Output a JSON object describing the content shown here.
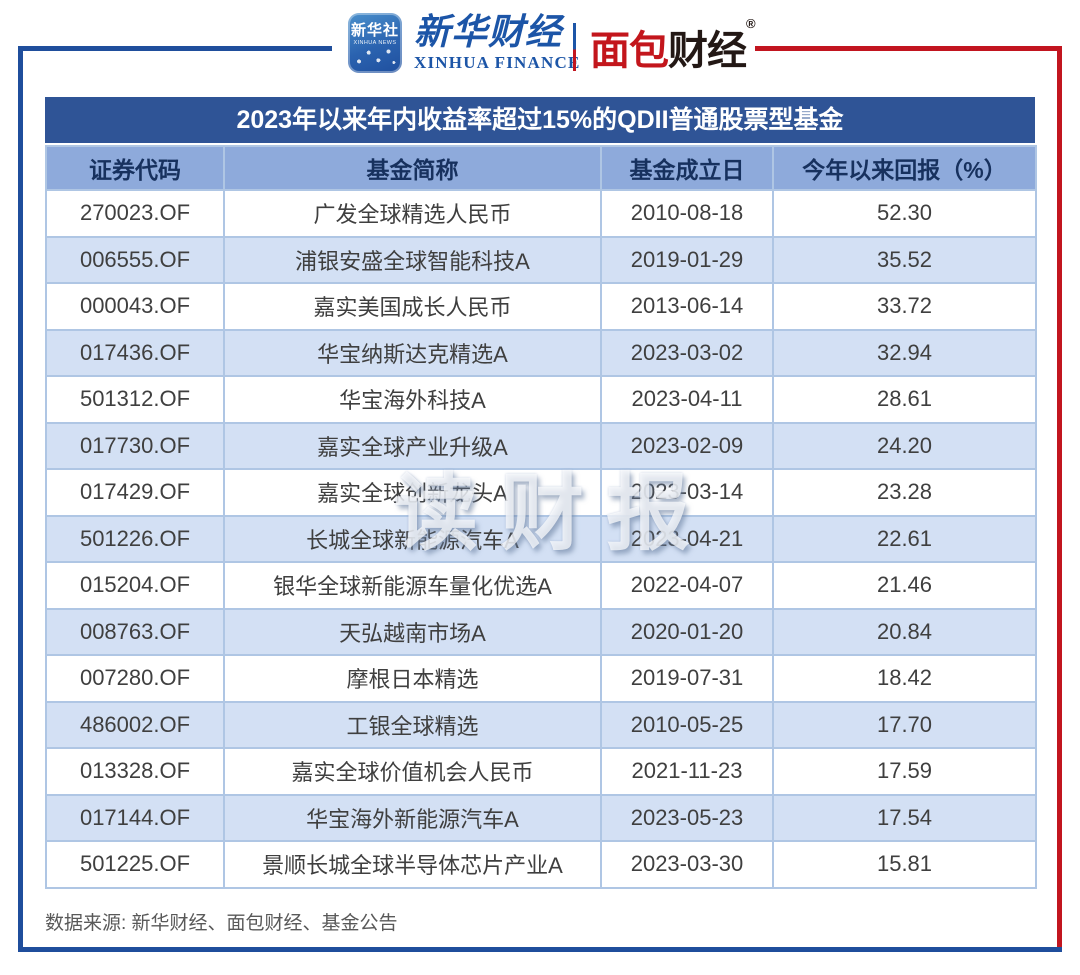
{
  "header": {
    "xinhua_news": {
      "cn": "新华社",
      "en": "XINHUA NEWS"
    },
    "xinhua_finance": {
      "cn": "新华财经",
      "en": "XINHUA FINANCE"
    },
    "mianbao": {
      "cn_red": "面包",
      "cn_black": "财经",
      "reg": "®"
    }
  },
  "chart_data": {
    "type": "table",
    "title": "2023年以来年内收益率超过15%的QDII普通股票型基金",
    "columns": [
      "证券代码",
      "基金简称",
      "基金成立日",
      "今年以来回报（%）"
    ],
    "rows": [
      [
        "270023.OF",
        "广发全球精选人民币",
        "2010-08-18",
        "52.30"
      ],
      [
        "006555.OF",
        "浦银安盛全球智能科技A",
        "2019-01-29",
        "35.52"
      ],
      [
        "000043.OF",
        "嘉实美国成长人民币",
        "2013-06-14",
        "33.72"
      ],
      [
        "017436.OF",
        "华宝纳斯达克精选A",
        "2023-03-02",
        "32.94"
      ],
      [
        "501312.OF",
        "华宝海外科技A",
        "2023-04-11",
        "28.61"
      ],
      [
        "017730.OF",
        "嘉实全球产业升级A",
        "2023-02-09",
        "24.20"
      ],
      [
        "017429.OF",
        "嘉实全球创新龙头A",
        "2023-03-14",
        "23.28"
      ],
      [
        "501226.OF",
        "长城全球新能源汽车A",
        "2023-04-21",
        "22.61"
      ],
      [
        "015204.OF",
        "银华全球新能源车量化优选A",
        "2022-04-07",
        "21.46"
      ],
      [
        "008763.OF",
        "天弘越南市场A",
        "2020-01-20",
        "20.84"
      ],
      [
        "007280.OF",
        "摩根日本精选",
        "2019-07-31",
        "18.42"
      ],
      [
        "486002.OF",
        "工银全球精选",
        "2010-05-25",
        "17.70"
      ],
      [
        "013328.OF",
        "嘉实全球价值机会人民币",
        "2021-11-23",
        "17.59"
      ],
      [
        "017144.OF",
        "华宝海外新能源汽车A",
        "2023-05-23",
        "17.54"
      ],
      [
        "501225.OF",
        "景顺长城全球半导体芯片产业A",
        "2023-03-30",
        "15.81"
      ]
    ]
  },
  "watermark": "读财报",
  "footer": {
    "source": "数据来源: 新华财经、面包财经、基金公告"
  },
  "colors": {
    "title_bar": "#2F5496",
    "header_row": "#8EAADB",
    "row_alt": "#D3E0F4",
    "cell_border": "#AFC6E4",
    "frame_blue": "#1F4E9C",
    "frame_red": "#C2151F",
    "brand_blue": "#1C55A7",
    "brand_red": "#C3161C",
    "cell_text": "#3F3F3F",
    "header_text": "#17315E",
    "source_text": "#595959"
  }
}
